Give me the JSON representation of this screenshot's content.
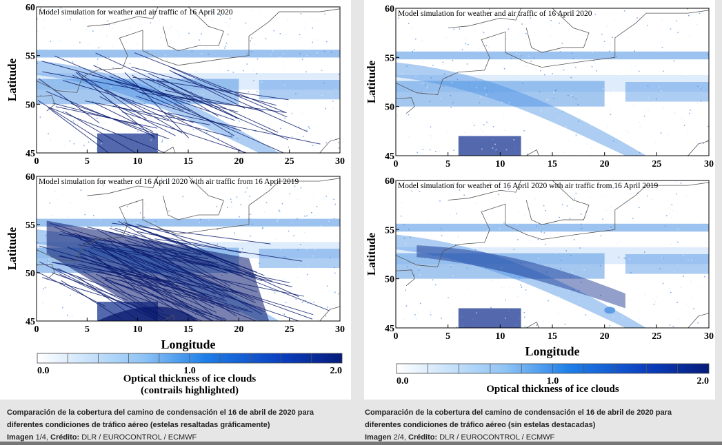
{
  "figures": [
    {
      "maps": [
        {
          "title": "Model simulation for weather and air traffic of 16 April 2020"
        },
        {
          "title": "Model simulation for weather of 16 April 2020 with air traffic from 16 April 2019"
        }
      ],
      "ylabel": "Latitude",
      "xlabel": "Longitude",
      "colorbar": {
        "title": "Optical thickness of ice clouds",
        "subtitle": "(contrails highlighted)",
        "ticks": [
          "0.0",
          "1.0",
          "2.0"
        ]
      },
      "caption": {
        "text": "Comparación de la cobertura del camino de condensación el 16 de abril de 2020 para diferentes condiciones de tráfico aéreo (estelas resaltadas gráficamente)",
        "image_label": "Imagen",
        "image_number": "1/4",
        "credit_label": "Crédito:",
        "credit": "DLR / EUROCONTROL / ECMWF"
      }
    },
    {
      "maps": [
        {
          "title": "Model simulation for weather and air traffic of 16 April 2020"
        },
        {
          "title": "Model simulation for weather of 16 April 2020 with air traffic from 16 April 2019"
        }
      ],
      "ylabel": "Latitude",
      "xlabel": "Longitude",
      "colorbar": {
        "title": "Optical thickness of ice clouds",
        "subtitle": "",
        "ticks": [
          "0.0",
          "1.0",
          "2.0"
        ]
      },
      "caption": {
        "text": "Comparación de la cobertura del camino de condensación el 16 de abril de 2020 para diferentes condiciones de tráfico aéreo (sin estelas destacadas)",
        "image_label": "Imagen",
        "image_number": "2/4",
        "credit_label": "Crédito:",
        "credit": "DLR / EUROCONTROL / ECMWF"
      }
    }
  ],
  "chart_data": [
    {
      "type": "heatmap",
      "title": "Model simulation for weather and air traffic of 16 April 2020",
      "ylabel": "Latitude",
      "xlim": [
        0,
        30
      ],
      "ylim": [
        45,
        60
      ],
      "xticks": [
        0,
        5,
        10,
        15,
        20,
        25,
        30
      ],
      "yticks": [
        45,
        50,
        55,
        60
      ],
      "colorbar_range": [
        0.0,
        2.0
      ],
      "contrails_highlighted": true
    },
    {
      "type": "heatmap",
      "title": "Model simulation for weather of 16 April 2020 with air traffic from 16 April 2019",
      "xlabel": "Longitude",
      "ylabel": "Latitude",
      "xlim": [
        0,
        30
      ],
      "ylim": [
        45,
        60
      ],
      "xticks": [
        0,
        5,
        10,
        15,
        20,
        25,
        30
      ],
      "yticks": [
        45,
        50,
        55,
        60
      ],
      "colorbar_range": [
        0.0,
        2.0
      ],
      "contrails_highlighted": true
    },
    {
      "type": "heatmap",
      "title": "Model simulation for weather and air traffic of 16 April 2020",
      "ylabel": "Latitude",
      "xlim": [
        0,
        30
      ],
      "ylim": [
        45,
        60
      ],
      "xticks": [
        0,
        5,
        10,
        15,
        20,
        25,
        30
      ],
      "yticks": [
        45,
        50,
        55,
        60
      ],
      "colorbar_range": [
        0.0,
        2.0
      ],
      "contrails_highlighted": false
    },
    {
      "type": "heatmap",
      "title": "Model simulation for weather of 16 April 2020 with air traffic from 16 April 2019",
      "xlabel": "Longitude",
      "ylabel": "Latitude",
      "xlim": [
        0,
        30
      ],
      "ylim": [
        45,
        60
      ],
      "xticks": [
        0,
        5,
        10,
        15,
        20,
        25,
        30
      ],
      "yticks": [
        45,
        50,
        55,
        60
      ],
      "colorbar_range": [
        0.0,
        2.0
      ],
      "contrails_highlighted": false
    }
  ],
  "colors": {
    "light": "#dbeafb",
    "mid": "#4a90e2",
    "dark": "#0b2a8a",
    "contrail": "#0a1a6e",
    "coast": "#555555"
  }
}
